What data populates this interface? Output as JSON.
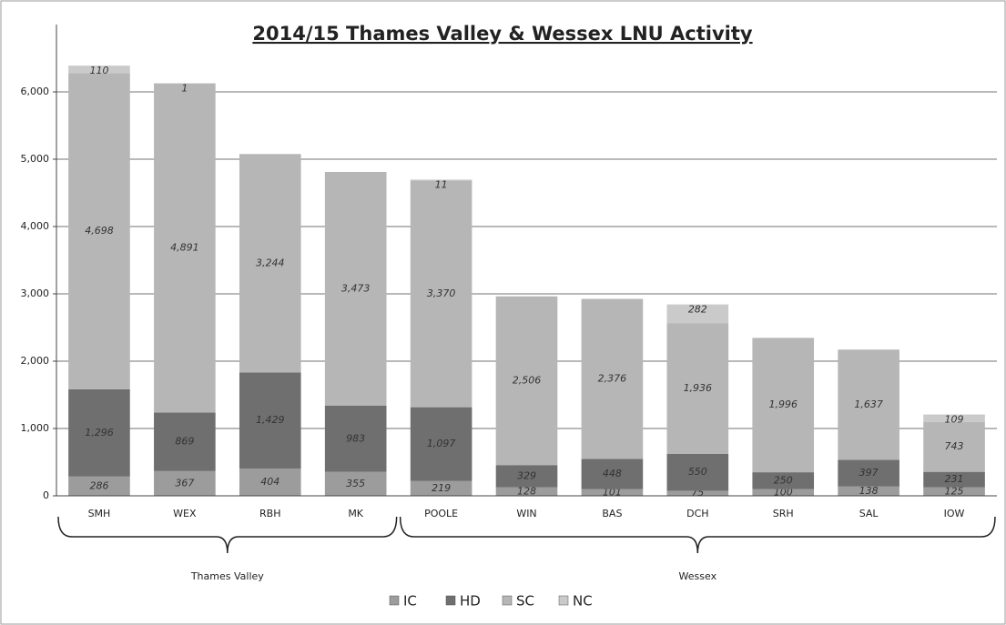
{
  "chart_data": {
    "type": "stacked_bar",
    "title": "2014/15 Thames Valley & Wessex LNU Activity",
    "categories": [
      "SMH",
      "WEX",
      "RBH",
      "MK",
      "POOLE",
      "WIN",
      "BAS",
      "DCH",
      "SRH",
      "SAL",
      "IOW"
    ],
    "groups": [
      {
        "label": "Thames Valley",
        "count": 4
      },
      {
        "label": "Wessex",
        "count": 7
      }
    ],
    "series": [
      {
        "name": "IC",
        "color": "#9c9c9c",
        "values": [
          286,
          367,
          404,
          355,
          219,
          128,
          101,
          75,
          100,
          138,
          125
        ]
      },
      {
        "name": "HD",
        "color": "#6f6f6f",
        "values": [
          1296,
          869,
          1429,
          983,
          1097,
          329,
          448,
          550,
          250,
          397,
          231
        ],
        "value_labels": [
          "1,296",
          "869",
          "1,429",
          "983",
          "1,097",
          "329",
          "448",
          "550",
          "250",
          "397",
          "231"
        ]
      },
      {
        "name": "SC",
        "color": "#b6b6b6",
        "values": [
          4698,
          4891,
          3244,
          3473,
          3370,
          2506,
          2376,
          1936,
          1996,
          1637,
          743
        ],
        "value_labels": [
          "4,698",
          "4,891",
          "3,244",
          "3,473",
          "3,370",
          "2,506",
          "2,376",
          "1,936",
          "1,996",
          "1,637",
          "743"
        ]
      },
      {
        "name": "NC",
        "color": "#cacaca",
        "values": [
          110,
          1,
          null,
          null,
          11,
          null,
          null,
          282,
          null,
          null,
          109
        ]
      }
    ],
    "ylim": [
      0,
      7000
    ],
    "yticks": [
      0,
      {
        "value": 1000,
        "label": "1,000"
      },
      {
        "value": 2000,
        "label": "2,000"
      },
      {
        "value": 3000,
        "label": "3,000"
      },
      {
        "value": 4000,
        "label": "4,000"
      },
      {
        "value": 5000,
        "label": "5,000"
      },
      {
        "value": 6000,
        "label": "6,000"
      }
    ],
    "grid": true,
    "legend": "bottom"
  }
}
